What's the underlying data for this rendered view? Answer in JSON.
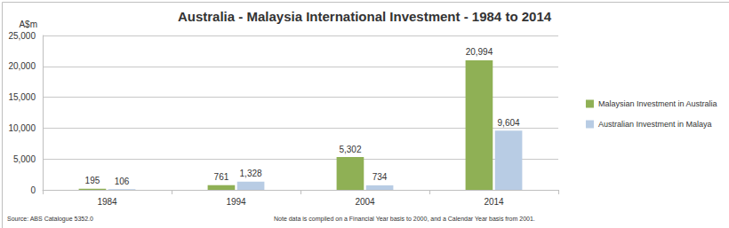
{
  "chart_data": {
    "type": "bar",
    "title": "Australia - Malaysia International Investment - 1984 to 2014",
    "ylabel": "A$m",
    "categories": [
      "1984",
      "1994",
      "2004",
      "2014"
    ],
    "series": [
      {
        "name": "Malaysian Investment in Australia",
        "color": "#8fb055",
        "values": [
          195,
          761,
          5302,
          20994
        ],
        "value_labels": [
          "195",
          "761",
          "5,302",
          "20,994"
        ]
      },
      {
        "name": "Australian Investment in Malaya",
        "color": "#b8cce4",
        "values": [
          106,
          1328,
          734,
          9604
        ],
        "value_labels": [
          "106",
          "1,328",
          "734",
          "9,604"
        ]
      }
    ],
    "ylim": [
      0,
      25000
    ],
    "yticks": [
      0,
      {
        "value": 5000,
        "label": "5,000"
      },
      {
        "value": 10000,
        "label": "10,000"
      },
      {
        "value": 15000,
        "label": "15,000"
      },
      {
        "value": 20000,
        "label": "20,000"
      },
      {
        "value": 25000,
        "label": "25,000"
      }
    ],
    "grid": true,
    "legend": "right",
    "data_labels": true,
    "annotations": [
      "Source: ABS Catalogue 5352.0",
      "Note data is compiled on a Financial Year basis to 2000, and a Calendar Year basis from 2001."
    ]
  }
}
